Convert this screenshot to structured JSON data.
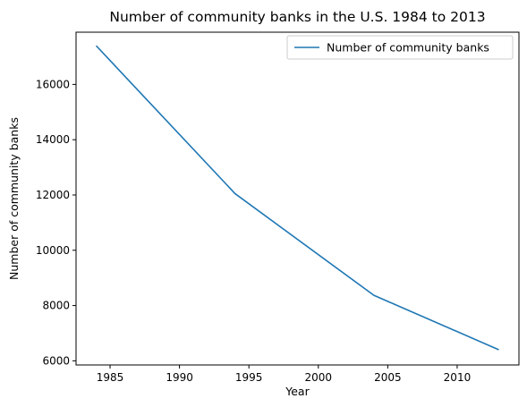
{
  "chart_data": {
    "type": "line",
    "title": "Number of community banks in the U.S. 1984 to 2013",
    "xlabel": "Year",
    "ylabel": "Number of community banks",
    "xlim": [
      1982.55,
      2014.45
    ],
    "ylim": [
      5850,
      17890
    ],
    "xticks": [
      1985,
      1990,
      1995,
      2000,
      2005,
      2010
    ],
    "yticks": [
      6000,
      8000,
      10000,
      12000,
      14000,
      16000
    ],
    "grid": false,
    "legend_position": "top-right",
    "series": [
      {
        "name": "Number of community banks",
        "color": "#1f77b4",
        "x": [
          1984,
          1994,
          2004,
          2013
        ],
        "y": [
          17400,
          12050,
          8370,
          6400
        ]
      }
    ]
  }
}
